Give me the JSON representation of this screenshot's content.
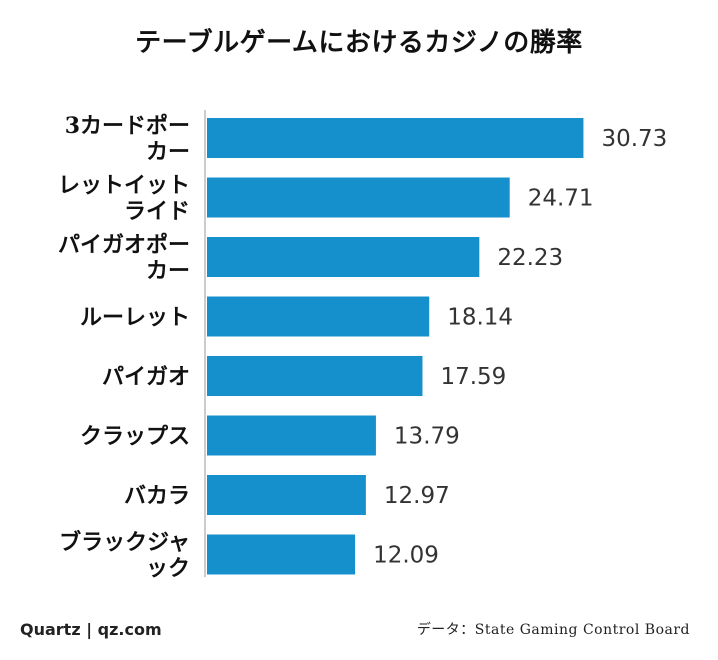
{
  "chart_data": {
    "type": "bar",
    "orientation": "horizontal",
    "title": "テーブルゲームにおけるカジノの勝率",
    "categories": [
      [
        "3カードポー",
        "カー"
      ],
      [
        "レットイット",
        "ライド"
      ],
      [
        "パイガオポー",
        "カー"
      ],
      [
        "ルーレット"
      ],
      [
        "パイガオ"
      ],
      [
        "クラップス"
      ],
      [
        "バカラ"
      ],
      [
        "ブラックジャ",
        "ック"
      ]
    ],
    "values": [
      30.73,
      24.71,
      22.23,
      18.14,
      17.59,
      13.79,
      12.97,
      12.09
    ],
    "value_labels": [
      "30.73",
      "24.71",
      "22.23",
      "18.14",
      "17.59",
      "13.79",
      "12.97",
      "12.09"
    ],
    "xlim": [
      0,
      35
    ],
    "grid": false,
    "bar_color": "#1690cc",
    "axis_color": "#999999"
  },
  "footer": {
    "source_left": "Quartz | qz.com",
    "source_right": "データ：State Gaming Control Board"
  }
}
